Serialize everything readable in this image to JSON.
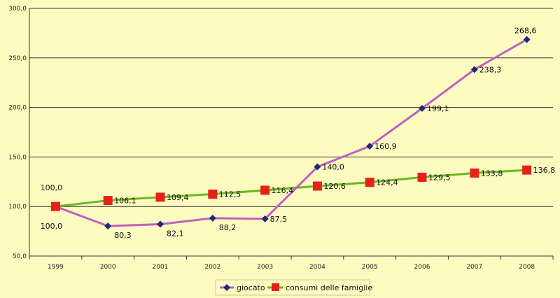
{
  "chart_data": {
    "type": "line",
    "categories": [
      "1999",
      "2000",
      "2001",
      "2002",
      "2003",
      "2004",
      "2005",
      "2006",
      "2007",
      "2008"
    ],
    "series": [
      {
        "name": "giocato",
        "color": "#c060c0",
        "marker_color": "#1e2a78",
        "marker": "diamond",
        "values": [
          100.0,
          80.3,
          82.1,
          88.2,
          87.5,
          140.0,
          160.9,
          199.1,
          238.3,
          268.6
        ],
        "labels": [
          "100,0",
          "80,3",
          "82,1",
          "88,2",
          "87,5",
          "140,0",
          "160,9",
          "199,1",
          "238,3",
          "268,6"
        ]
      },
      {
        "name": "consumi delle famiglie",
        "color": "#6ab820",
        "marker_color": "#e8201c",
        "marker": "square",
        "values": [
          100.0,
          106.1,
          109.4,
          112.5,
          116.4,
          120.6,
          124.4,
          129.5,
          133.8,
          136.8
        ],
        "labels": [
          "100,0",
          "106,1",
          "109,4",
          "112,5",
          "116,4",
          "120,6",
          "124,4",
          "129,5",
          "133,8",
          "136,8"
        ]
      }
    ],
    "ylim": [
      50,
      300
    ],
    "yticks": [
      50,
      100,
      150,
      200,
      250,
      300
    ],
    "ytick_labels": [
      "50,0",
      "100,0",
      "150,0",
      "200,0",
      "250,0",
      "300,0"
    ],
    "grid": true,
    "legend_position": "bottom",
    "background": "#fdfbc0"
  }
}
